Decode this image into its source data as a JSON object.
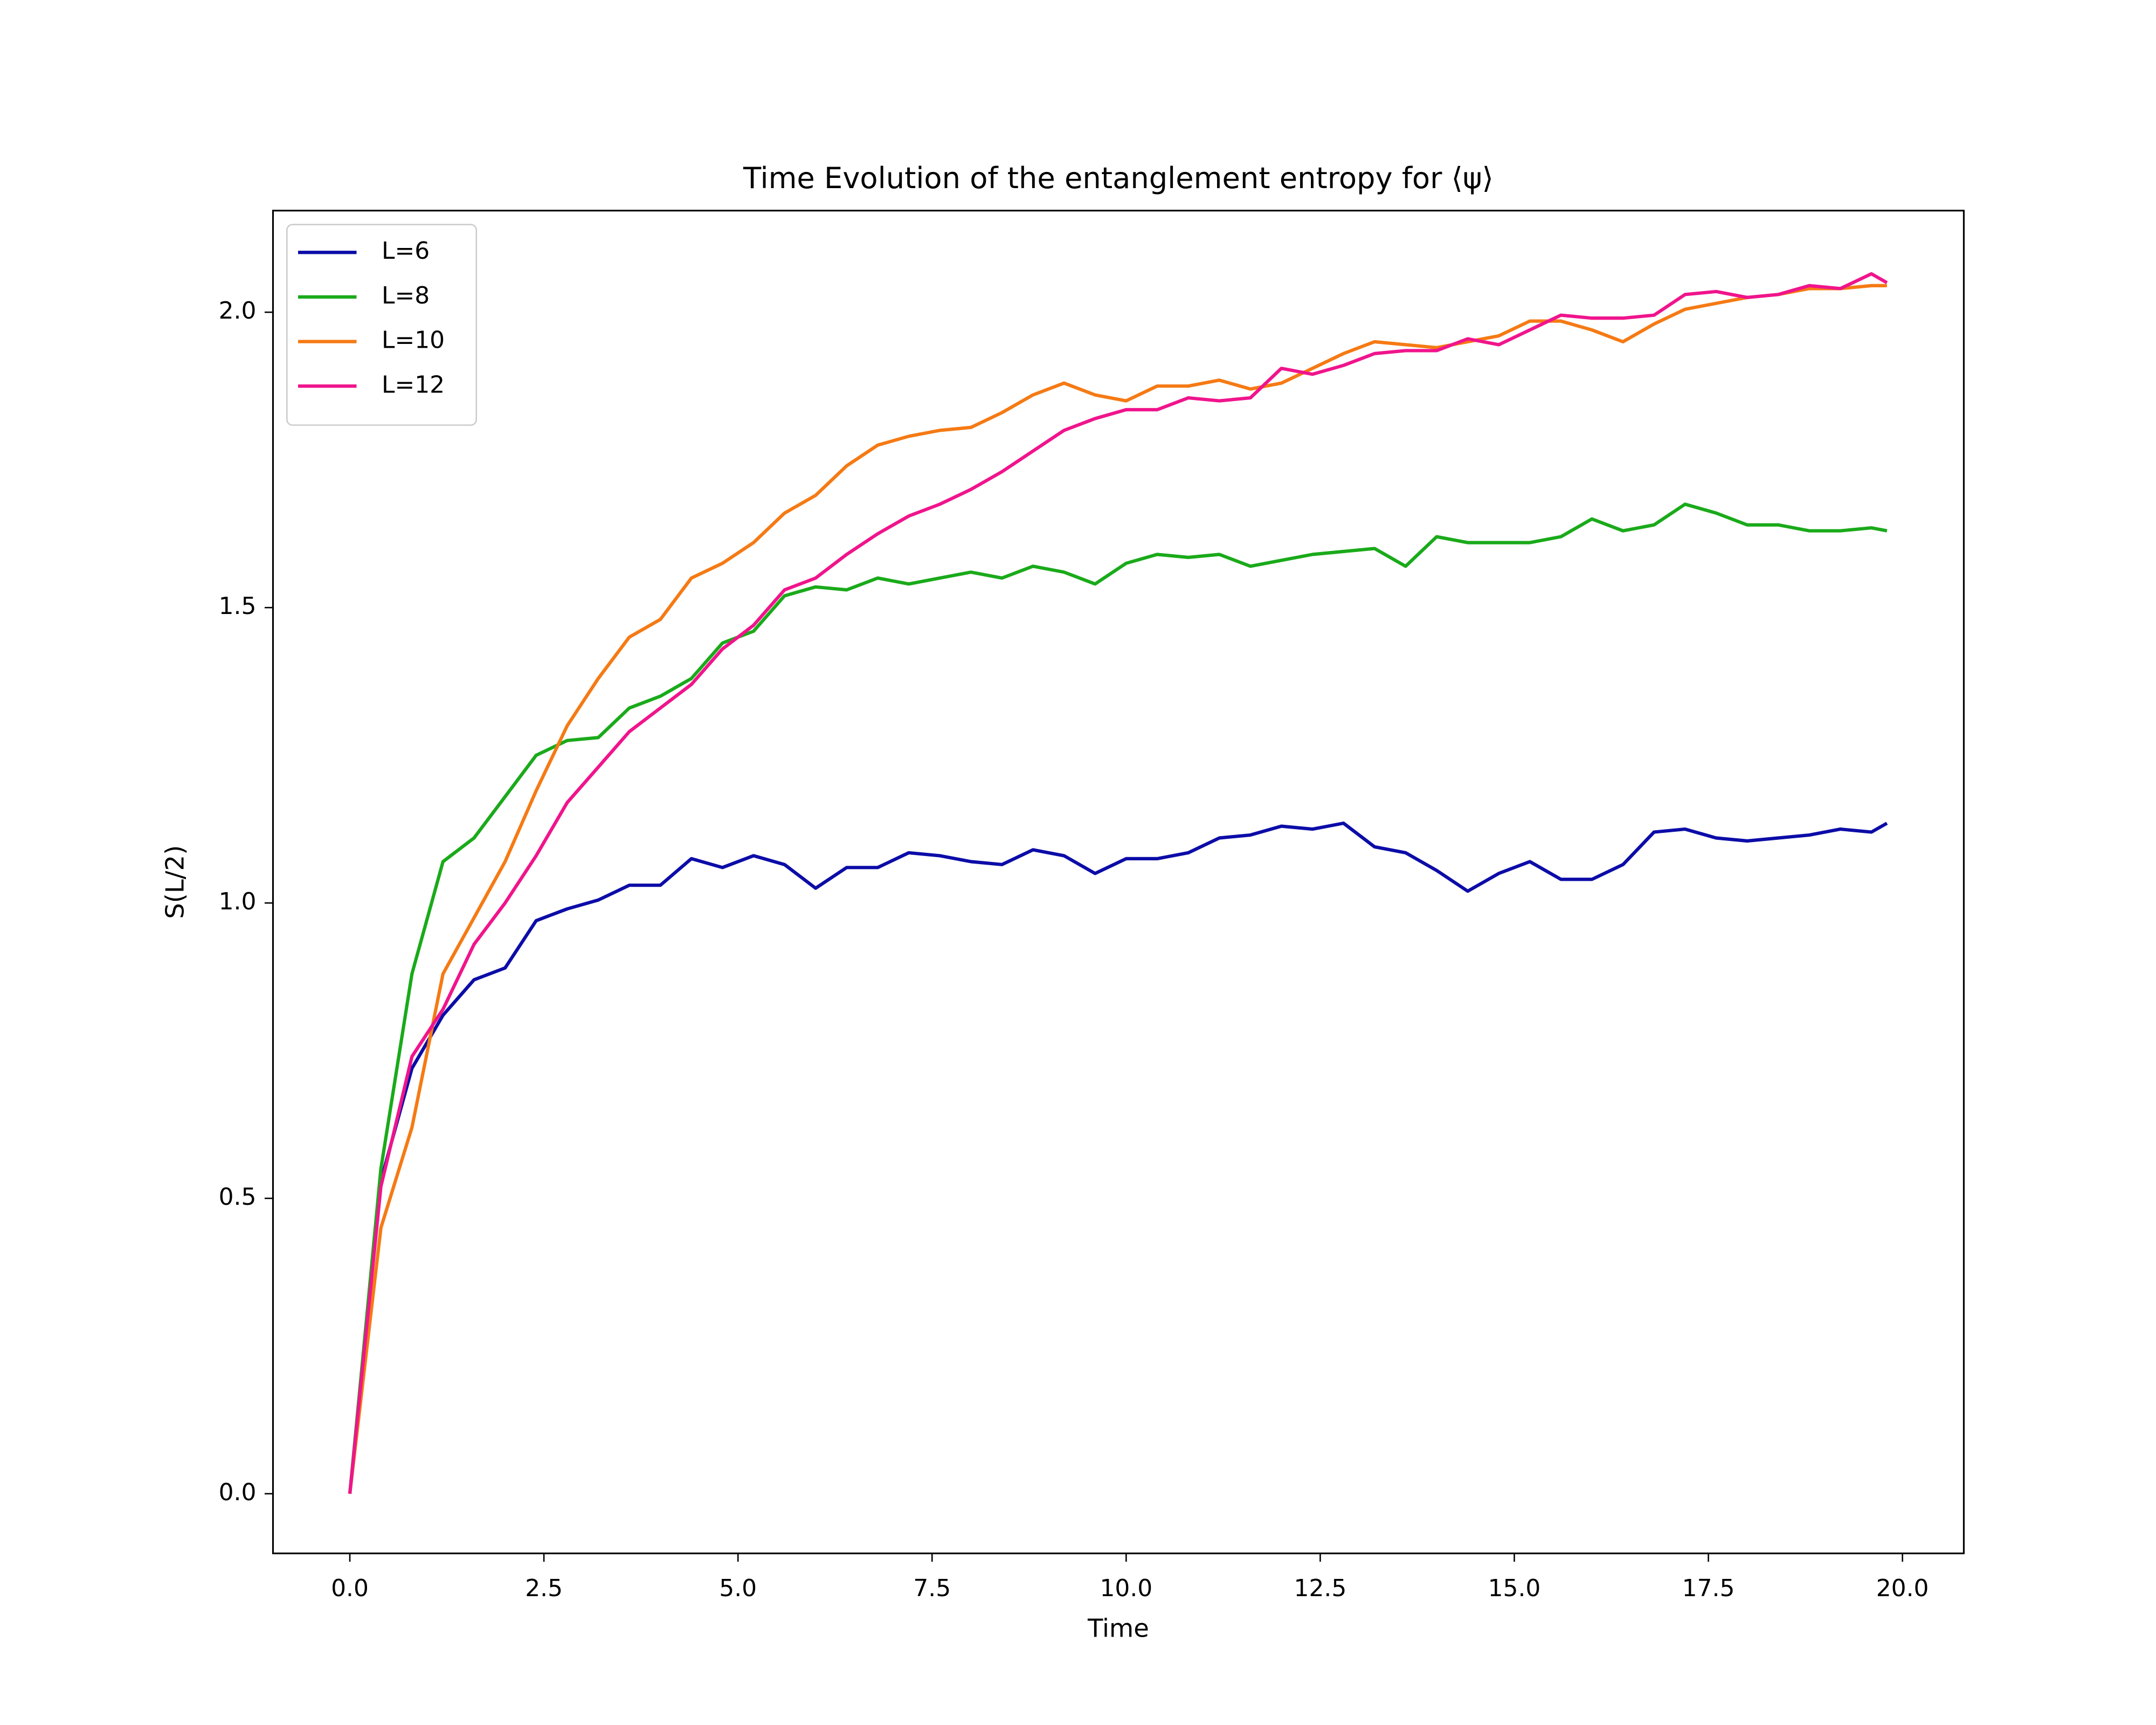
{
  "chart_data": {
    "type": "line",
    "title": "Time Evolution of the entanglement entropy for ⟨ψ⟩",
    "xlabel": "Time",
    "ylabel": "S(L/2)",
    "x": [
      0,
      0.4,
      0.8,
      1.2,
      1.6,
      2.0,
      2.4,
      2.8,
      3.2,
      3.6,
      4.0,
      4.4,
      4.8,
      5.2,
      5.6,
      6.0,
      6.4,
      6.8,
      7.2,
      7.6,
      8.0,
      8.4,
      8.8,
      9.2,
      9.6,
      10.0,
      10.4,
      10.8,
      11.2,
      11.6,
      12.0,
      12.4,
      12.8,
      13.2,
      13.6,
      14.0,
      14.4,
      14.8,
      15.2,
      15.6,
      16.0,
      16.4,
      16.8,
      17.2,
      17.6,
      18.0,
      18.4,
      18.8,
      19.2,
      19.6,
      19.8
    ],
    "series": [
      {
        "name": "L=6",
        "color": "#0c0ca8",
        "values": [
          0,
          0.53,
          0.72,
          0.81,
          0.87,
          0.89,
          0.97,
          0.99,
          1.005,
          1.03,
          1.03,
          1.075,
          1.06,
          1.08,
          1.065,
          1.025,
          1.06,
          1.06,
          1.085,
          1.08,
          1.07,
          1.065,
          1.09,
          1.08,
          1.05,
          1.075,
          1.075,
          1.085,
          1.11,
          1.115,
          1.13,
          1.125,
          1.135,
          1.095,
          1.085,
          1.055,
          1.02,
          1.05,
          1.07,
          1.04,
          1.04,
          1.065,
          1.12,
          1.125,
          1.11,
          1.105,
          1.11,
          1.115,
          1.125,
          1.12,
          1.135
        ]
      },
      {
        "name": "L=8",
        "color": "#1aaa1a",
        "values": [
          0,
          0.55,
          0.88,
          1.07,
          1.11,
          1.18,
          1.25,
          1.275,
          1.28,
          1.33,
          1.35,
          1.38,
          1.44,
          1.46,
          1.52,
          1.535,
          1.53,
          1.55,
          1.54,
          1.55,
          1.56,
          1.55,
          1.57,
          1.56,
          1.54,
          1.575,
          1.59,
          1.585,
          1.59,
          1.57,
          1.58,
          1.59,
          1.595,
          1.6,
          1.57,
          1.62,
          1.61,
          1.61,
          1.61,
          1.62,
          1.65,
          1.63,
          1.64,
          1.675,
          1.66,
          1.64,
          1.64,
          1.63,
          1.63,
          1.635,
          1.63
        ]
      },
      {
        "name": "L=10",
        "color": "#f57a14",
        "values": [
          0,
          0.45,
          0.62,
          0.88,
          0.975,
          1.07,
          1.19,
          1.3,
          1.38,
          1.45,
          1.48,
          1.55,
          1.575,
          1.61,
          1.66,
          1.69,
          1.74,
          1.775,
          1.79,
          1.8,
          1.805,
          1.83,
          1.86,
          1.88,
          1.86,
          1.85,
          1.875,
          1.875,
          1.885,
          1.87,
          1.88,
          1.905,
          1.93,
          1.95,
          1.945,
          1.94,
          1.95,
          1.96,
          1.985,
          1.985,
          1.97,
          1.95,
          1.98,
          2.005,
          2.015,
          2.025,
          2.03,
          2.04,
          2.04,
          2.045,
          2.045
        ]
      },
      {
        "name": "L=12",
        "color": "#f0148c",
        "values": [
          0,
          0.52,
          0.74,
          0.82,
          0.93,
          1.0,
          1.08,
          1.17,
          1.23,
          1.29,
          1.33,
          1.37,
          1.43,
          1.47,
          1.53,
          1.55,
          1.59,
          1.625,
          1.655,
          1.675,
          1.7,
          1.73,
          1.765,
          1.8,
          1.82,
          1.835,
          1.835,
          1.855,
          1.85,
          1.855,
          1.905,
          1.895,
          1.91,
          1.93,
          1.935,
          1.935,
          1.955,
          1.945,
          1.97,
          1.995,
          1.99,
          1.99,
          1.995,
          2.03,
          2.035,
          2.025,
          2.03,
          2.045,
          2.04,
          2.065,
          2.05
        ]
      }
    ],
    "xlim": [
      -0.99,
      20.79
    ],
    "ylim": [
      -0.101,
      2.172
    ],
    "xticks": [
      {
        "value": 0,
        "label": "0.0"
      },
      2.5,
      {
        "value": 5,
        "label": "5.0"
      },
      7.5,
      {
        "value": 10,
        "label": "10.0"
      },
      12.5,
      {
        "value": 15,
        "label": "15.0"
      },
      17.5,
      {
        "value": 20,
        "label": "20.0"
      }
    ],
    "yticks": [
      {
        "value": 0,
        "label": "0.0"
      },
      0.5,
      {
        "value": 1,
        "label": "1.0"
      },
      1.5,
      {
        "value": 2,
        "label": "2.0"
      }
    ],
    "grid": false,
    "legend": "upper left"
  }
}
